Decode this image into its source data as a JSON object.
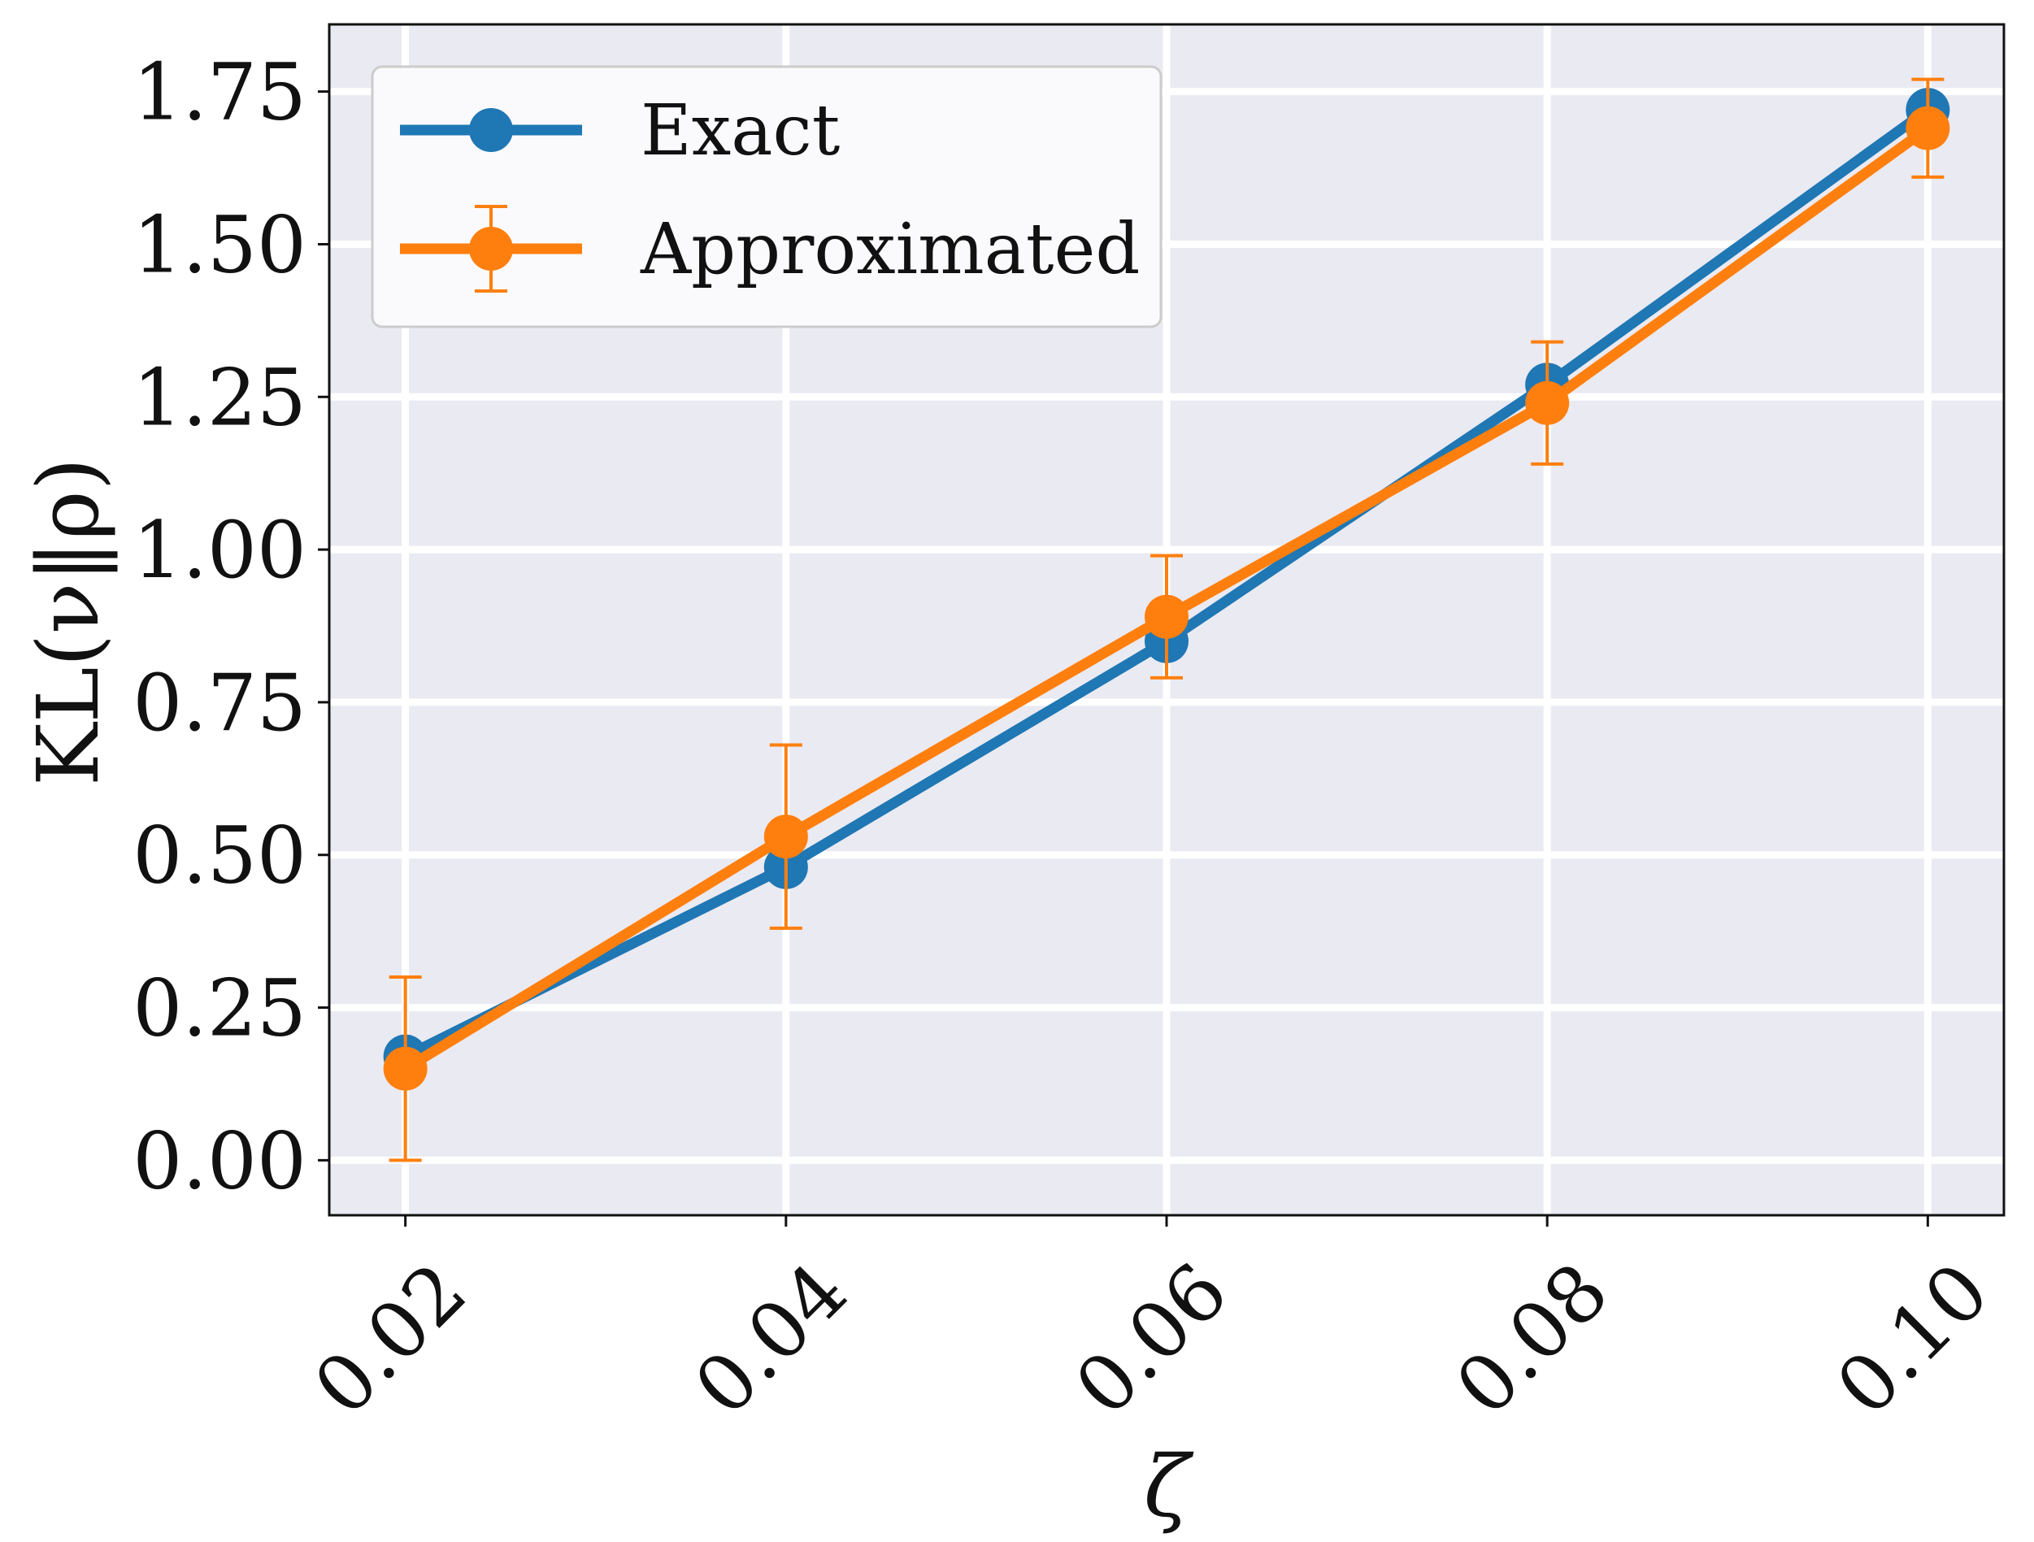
{
  "chart_data": {
    "type": "line",
    "title": "",
    "xlabel": "ζ",
    "ylabel": "KL(ν‖ρ)",
    "x": [
      0.02,
      0.04,
      0.06,
      0.08,
      0.1
    ],
    "x_tick_labels": [
      "0.02",
      "0.04",
      "0.06",
      "0.08",
      "0.10"
    ],
    "y_ticks": [
      0.0,
      0.25,
      0.5,
      0.75,
      1.0,
      1.25,
      1.5,
      1.75
    ],
    "y_tick_labels": [
      "0.00",
      "0.25",
      "0.50",
      "0.75",
      "1.00",
      "1.25",
      "1.50",
      "1.75"
    ],
    "xlim": [
      0.016,
      0.104
    ],
    "ylim": [
      -0.09,
      1.86
    ],
    "grid": true,
    "legend_position": "top-left",
    "series": [
      {
        "name": "Exact",
        "color": "#1f77b4",
        "values": [
          0.17,
          0.48,
          0.85,
          1.27,
          1.72
        ]
      },
      {
        "name": "Approximated",
        "color": "#ff7f0e",
        "values": [
          0.15,
          0.53,
          0.89,
          1.24,
          1.69
        ],
        "error": [
          0.15,
          0.15,
          0.1,
          0.1,
          0.08
        ]
      }
    ]
  }
}
